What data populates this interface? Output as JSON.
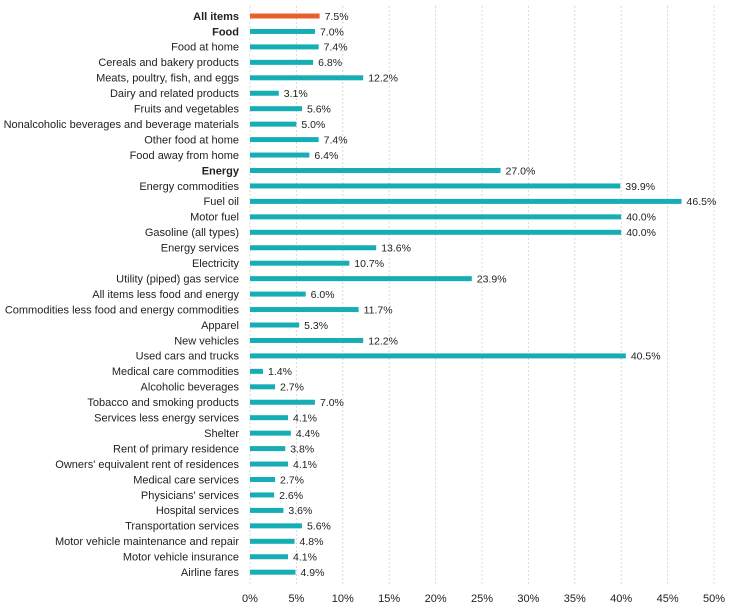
{
  "chart_data": {
    "type": "bar",
    "orientation": "horizontal",
    "categories": [
      "All items",
      "Food",
      "Food at home",
      "Cereals and bakery products",
      "Meats, poultry, fish, and eggs",
      "Dairy and related products",
      "Fruits and vegetables",
      "Nonalcoholic beverages and beverage materials",
      "Other food at home",
      "Food away from home",
      "Energy",
      "Energy commodities",
      "Fuel oil",
      "Motor fuel",
      "Gasoline (all types)",
      "Energy services",
      "Electricity",
      "Utility (piped) gas service",
      "All items less food and energy",
      "Commodities less food and energy commodities",
      "Apparel",
      "New vehicles",
      "Used cars and trucks",
      "Medical care commodities",
      "Alcoholic beverages",
      "Tobacco and smoking products",
      "Services less energy services",
      "Shelter",
      "Rent of primary residence",
      "Owners' equivalent rent of residences",
      "Medical care services",
      "Physicians' services",
      "Hospital services",
      "Transportation services",
      "Motor vehicle maintenance and repair",
      "Motor vehicle insurance",
      "Airline fares"
    ],
    "values": [
      7.5,
      7.0,
      7.4,
      6.8,
      12.2,
      3.1,
      5.6,
      5.0,
      7.4,
      6.4,
      27.0,
      39.9,
      46.5,
      40.0,
      40.0,
      13.6,
      10.7,
      23.9,
      6.0,
      11.7,
      5.3,
      12.2,
      40.5,
      1.4,
      2.7,
      7.0,
      4.1,
      4.4,
      3.8,
      4.1,
      2.7,
      2.6,
      3.6,
      5.6,
      4.8,
      4.1,
      4.9
    ],
    "value_labels": [
      "7.5%",
      "7.0%",
      "7.4%",
      "6.8%",
      "12.2%",
      "3.1%",
      "5.6%",
      "5.0%",
      "7.4%",
      "6.4%",
      "27.0%",
      "39.9%",
      "46.5%",
      "40.0%",
      "40.0%",
      "13.6%",
      "10.7%",
      "23.9%",
      "6.0%",
      "11.7%",
      "5.3%",
      "12.2%",
      "40.5%",
      "1.4%",
      "2.7%",
      "7.0%",
      "4.1%",
      "4.4%",
      "3.8%",
      "4.1%",
      "2.7%",
      "2.6%",
      "3.6%",
      "5.6%",
      "4.8%",
      "4.1%",
      "4.9%"
    ],
    "bold_categories": [
      "All items",
      "Food",
      "Energy"
    ],
    "highlight_category": "All items",
    "x_ticks": [
      "0%",
      "5%",
      "10%",
      "15%",
      "20%",
      "25%",
      "30%",
      "35%",
      "40%",
      "45%",
      "50%"
    ],
    "xlim": [
      0,
      50
    ],
    "grid": true,
    "colors": {
      "bar": "#16aeb4",
      "highlight": "#e8612c"
    }
  }
}
